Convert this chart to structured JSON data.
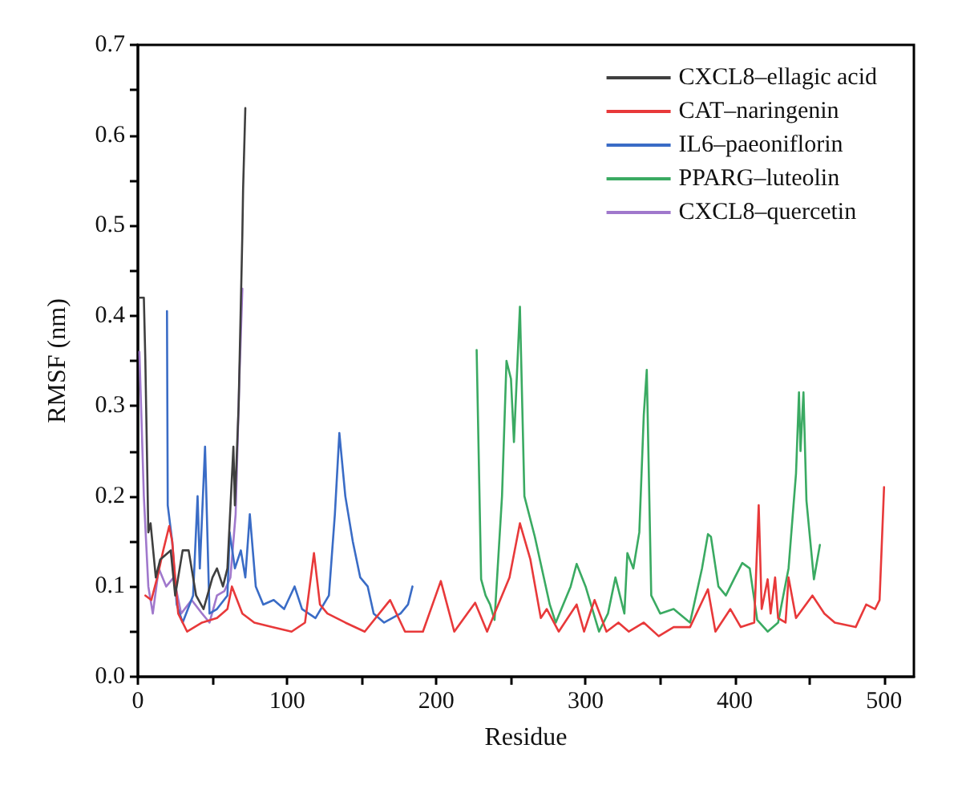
{
  "chart_data": {
    "type": "line",
    "xlabel": "Residue",
    "ylabel": "RMSF (nm)",
    "xlim": [
      0,
      520
    ],
    "ylim": [
      0,
      0.7
    ],
    "xticks": [
      0,
      {
        "value": 50,
        "label": null
      },
      100,
      {
        "value": 150,
        "label": null
      },
      200,
      {
        "value": 250,
        "label": null
      },
      300,
      {
        "value": 350,
        "label": null
      },
      400,
      {
        "value": 450,
        "label": null
      },
      500
    ],
    "yticks": [
      "0.0",
      {
        "value": 0.05,
        "label": null
      },
      0.1,
      {
        "value": 0.15,
        "label": null
      },
      0.2,
      {
        "value": 0.25,
        "label": null
      },
      0.3,
      {
        "value": 0.35,
        "label": null
      },
      0.4,
      {
        "value": 0.45,
        "label": null
      },
      0.5,
      {
        "value": 0.55,
        "label": null
      },
      0.6,
      {
        "value": 0.65,
        "label": null
      },
      0.7
    ],
    "grid": false,
    "legend": "top right",
    "marker": "none",
    "line_style": "solid",
    "series": [
      {
        "name": "CXCL8–ellagic acid",
        "color": "#3f3f3f",
        "x": [
          1,
          4,
          5,
          7,
          8.5,
          12,
          15,
          22,
          25,
          30,
          34,
          39,
          44,
          50,
          53,
          57,
          60,
          64,
          65,
          67.5,
          70,
          70.5,
          72
        ],
        "values": [
          0.42,
          0.42,
          0.35,
          0.16,
          0.17,
          0.11,
          0.13,
          0.14,
          0.09,
          0.14,
          0.14,
          0.09,
          0.075,
          0.11,
          0.12,
          0.1,
          0.12,
          0.255,
          0.19,
          0.3,
          0.49,
          0.54,
          0.63
        ]
      },
      {
        "name": "CAT–naringenin",
        "color": "#e8393a",
        "x": [
          5,
          9,
          13,
          17,
          21,
          23,
          27,
          33,
          43,
          53,
          60,
          63,
          70,
          78,
          90,
          103,
          112,
          118,
          122,
          127,
          139,
          152,
          169,
          179,
          191,
          203,
          212,
          226,
          234,
          249,
          256,
          263,
          270,
          274,
          282,
          294,
          299,
          306,
          314,
          322,
          329,
          339,
          349,
          359,
          370,
          382,
          387,
          397,
          404,
          413,
          416,
          418,
          422,
          424,
          427,
          429,
          434,
          436,
          441,
          452,
          460,
          467,
          481,
          488,
          494,
          497,
          500
        ],
        "values": [
          0.09,
          0.085,
          0.11,
          0.14,
          0.167,
          0.15,
          0.07,
          0.05,
          0.06,
          0.065,
          0.075,
          0.1,
          0.07,
          0.06,
          0.055,
          0.05,
          0.06,
          0.137,
          0.08,
          0.07,
          0.06,
          0.05,
          0.085,
          0.05,
          0.05,
          0.106,
          0.05,
          0.082,
          0.05,
          0.11,
          0.17,
          0.13,
          0.065,
          0.075,
          0.05,
          0.08,
          0.05,
          0.085,
          0.05,
          0.06,
          0.05,
          0.06,
          0.045,
          0.055,
          0.055,
          0.097,
          0.05,
          0.075,
          0.055,
          0.06,
          0.19,
          0.075,
          0.108,
          0.07,
          0.11,
          0.065,
          0.06,
          0.11,
          0.065,
          0.09,
          0.07,
          0.06,
          0.055,
          0.08,
          0.075,
          0.085,
          0.21
        ]
      },
      {
        "name": "IL6–paeoniflorin",
        "color": "#3a6cc6",
        "x": [
          19.5,
          20,
          23,
          26,
          30,
          37,
          40,
          41.5,
          45,
          48,
          53,
          60,
          61.5,
          65,
          69,
          72,
          75,
          79,
          84,
          91,
          98,
          105,
          110,
          119,
          128,
          132,
          135,
          139,
          144,
          149,
          154,
          158,
          165,
          176,
          181,
          184
        ],
        "values": [
          0.405,
          0.19,
          0.15,
          0.08,
          0.06,
          0.09,
          0.2,
          0.12,
          0.255,
          0.07,
          0.075,
          0.09,
          0.16,
          0.12,
          0.14,
          0.11,
          0.18,
          0.1,
          0.08,
          0.085,
          0.075,
          0.1,
          0.075,
          0.065,
          0.09,
          0.18,
          0.27,
          0.2,
          0.15,
          0.11,
          0.1,
          0.07,
          0.06,
          0.07,
          0.08,
          0.1
        ]
      },
      {
        "name": "PPARG–luteolin",
        "color": "#3aaa62",
        "x": [
          227,
          230,
          233,
          236,
          239,
          244,
          247,
          250,
          252,
          256,
          259,
          266,
          276,
          280,
          290,
          294,
          300,
          309,
          315,
          320,
          326,
          328,
          332,
          336,
          339,
          341,
          344,
          350,
          359,
          370,
          378,
          382,
          384,
          389,
          394,
          400,
          405,
          410,
          415,
          422,
          429,
          436,
          441,
          443,
          444,
          446,
          448,
          453,
          457
        ],
        "values": [
          0.362,
          0.108,
          0.09,
          0.08,
          0.063,
          0.2,
          0.35,
          0.33,
          0.26,
          0.41,
          0.2,
          0.155,
          0.08,
          0.06,
          0.1,
          0.125,
          0.1,
          0.05,
          0.07,
          0.11,
          0.07,
          0.137,
          0.12,
          0.16,
          0.29,
          0.34,
          0.09,
          0.07,
          0.075,
          0.06,
          0.12,
          0.158,
          0.155,
          0.1,
          0.09,
          0.11,
          0.126,
          0.12,
          0.063,
          0.05,
          0.06,
          0.12,
          0.225,
          0.315,
          0.25,
          0.315,
          0.195,
          0.108,
          0.146
        ]
      },
      {
        "name": "CXCL8–quercetin",
        "color": "#a078cc",
        "x": [
          1,
          4,
          7,
          10,
          14,
          19,
          24,
          29,
          36,
          43,
          48,
          53,
          58,
          62,
          65.5,
          68,
          70
        ],
        "values": [
          0.36,
          0.2,
          0.1,
          0.07,
          0.12,
          0.1,
          0.11,
          0.07,
          0.085,
          0.07,
          0.06,
          0.09,
          0.095,
          0.11,
          0.18,
          0.33,
          0.43
        ]
      }
    ]
  }
}
